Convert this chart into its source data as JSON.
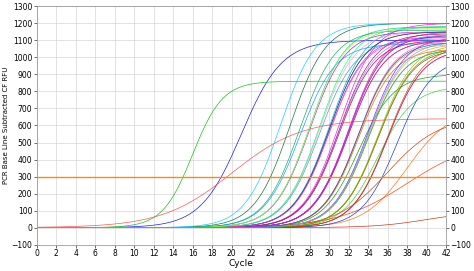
{
  "title": "",
  "xlabel": "Cycle",
  "ylabel": "PCR Base Line Subtracted CF RFU",
  "xlim": [
    0,
    42
  ],
  "ylim": [
    -100,
    1300
  ],
  "xticks": [
    0,
    2,
    4,
    6,
    8,
    10,
    12,
    14,
    16,
    18,
    20,
    22,
    24,
    26,
    28,
    30,
    32,
    34,
    36,
    38,
    40,
    42
  ],
  "yticks": [
    -100,
    0,
    100,
    200,
    300,
    400,
    500,
    600,
    700,
    800,
    900,
    1000,
    1100,
    1200,
    1300
  ],
  "threshold_y": 300,
  "threshold_color": "#FF8C00",
  "bg_color": "#ffffff",
  "grid_color": "#cccccc",
  "curves": [
    {
      "color": "#0000FF",
      "L": 1100,
      "k": 0.48,
      "x0": 21
    },
    {
      "color": "#00BB00",
      "L": 860,
      "k": 0.65,
      "x0": 16
    },
    {
      "color": "#FF4444",
      "L": 640,
      "k": 0.28,
      "x0": 20
    },
    {
      "color": "#CC00CC",
      "L": 1150,
      "k": 0.55,
      "x0": 28
    },
    {
      "color": "#00AAAA",
      "L": 1180,
      "k": 0.55,
      "x0": 30
    },
    {
      "color": "#FF00FF",
      "L": 1200,
      "k": 0.55,
      "x0": 31
    },
    {
      "color": "#009900",
      "L": 900,
      "k": 0.55,
      "x0": 33
    },
    {
      "color": "#FF6600",
      "L": 700,
      "k": 0.45,
      "x0": 38
    },
    {
      "color": "#6600CC",
      "L": 1100,
      "k": 0.55,
      "x0": 32
    },
    {
      "color": "#CC2200",
      "L": 95,
      "k": 0.38,
      "x0": 40
    },
    {
      "color": "#0066FF",
      "L": 1050,
      "k": 0.55,
      "x0": 34
    },
    {
      "color": "#33CC33",
      "L": 830,
      "k": 0.55,
      "x0": 35
    },
    {
      "color": "#FF99CC",
      "L": 1150,
      "k": 0.55,
      "x0": 29
    },
    {
      "color": "#9933FF",
      "L": 1120,
      "k": 0.55,
      "x0": 30
    },
    {
      "color": "#FF3300",
      "L": 520,
      "k": 0.28,
      "x0": 38
    },
    {
      "color": "#0099FF",
      "L": 1080,
      "k": 0.55,
      "x0": 27
    },
    {
      "color": "#DDAA00",
      "L": 1100,
      "k": 0.55,
      "x0": 31
    },
    {
      "color": "#CC6600",
      "L": 1050,
      "k": 0.55,
      "x0": 33
    },
    {
      "color": "#006633",
      "L": 1200,
      "k": 0.55,
      "x0": 26
    },
    {
      "color": "#FF0066",
      "L": 1150,
      "k": 0.55,
      "x0": 32
    },
    {
      "color": "#3399CC",
      "L": 1100,
      "k": 0.55,
      "x0": 29
    },
    {
      "color": "#884400",
      "L": 1050,
      "k": 0.55,
      "x0": 35
    },
    {
      "color": "#00CC88",
      "L": 1180,
      "k": 0.55,
      "x0": 28
    },
    {
      "color": "#CC00CC",
      "L": 1100,
      "k": 0.55,
      "x0": 31
    },
    {
      "color": "#FF6699",
      "L": 1050,
      "k": 0.55,
      "x0": 36
    },
    {
      "color": "#0033CC",
      "L": 1000,
      "k": 0.55,
      "x0": 37
    },
    {
      "color": "#44DD44",
      "L": 1150,
      "k": 0.55,
      "x0": 30
    },
    {
      "color": "#FF9900",
      "L": 1080,
      "k": 0.55,
      "x0": 33
    },
    {
      "color": "#9900FF",
      "L": 1120,
      "k": 0.55,
      "x0": 34
    },
    {
      "color": "#CC3300",
      "L": 650,
      "k": 0.38,
      "x0": 36
    },
    {
      "color": "#00CCFF",
      "L": 1200,
      "k": 0.55,
      "x0": 25
    },
    {
      "color": "#FF3366",
      "L": 1100,
      "k": 0.55,
      "x0": 32
    },
    {
      "color": "#66CC00",
      "L": 1050,
      "k": 0.55,
      "x0": 34
    },
    {
      "color": "#AAAA00",
      "L": 1080,
      "k": 0.55,
      "x0": 35
    },
    {
      "color": "#3300CC",
      "L": 1150,
      "k": 0.55,
      "x0": 30
    },
    {
      "color": "#FF66CC",
      "L": 1100,
      "k": 0.55,
      "x0": 33
    },
    {
      "color": "#00FF66",
      "L": 1180,
      "k": 0.55,
      "x0": 29
    },
    {
      "color": "#CC0066",
      "L": 1050,
      "k": 0.55,
      "x0": 36
    },
    {
      "color": "#6699FF",
      "L": 1120,
      "k": 0.55,
      "x0": 31
    },
    {
      "color": "#FF9933",
      "L": 1080,
      "k": 0.55,
      "x0": 34
    },
    {
      "color": "#00AA55",
      "L": 1160,
      "k": 0.55,
      "x0": 27
    },
    {
      "color": "#5500AA",
      "L": 1130,
      "k": 0.55,
      "x0": 32
    },
    {
      "color": "#AA5500",
      "L": 1070,
      "k": 0.55,
      "x0": 36
    },
    {
      "color": "#0055AA",
      "L": 1090,
      "k": 0.55,
      "x0": 33
    },
    {
      "color": "#AA0055",
      "L": 1140,
      "k": 0.55,
      "x0": 31
    },
    {
      "color": "#55AA00",
      "L": 1060,
      "k": 0.55,
      "x0": 35
    },
    {
      "color": "#FF44AA",
      "L": 1110,
      "k": 0.55,
      "x0": 30
    },
    {
      "color": "#44AAFF",
      "L": 1095,
      "k": 0.55,
      "x0": 34
    },
    {
      "color": "#AAFF44",
      "L": 1170,
      "k": 0.55,
      "x0": 28
    },
    {
      "color": "#AA44FF",
      "L": 1135,
      "k": 0.55,
      "x0": 32
    }
  ]
}
